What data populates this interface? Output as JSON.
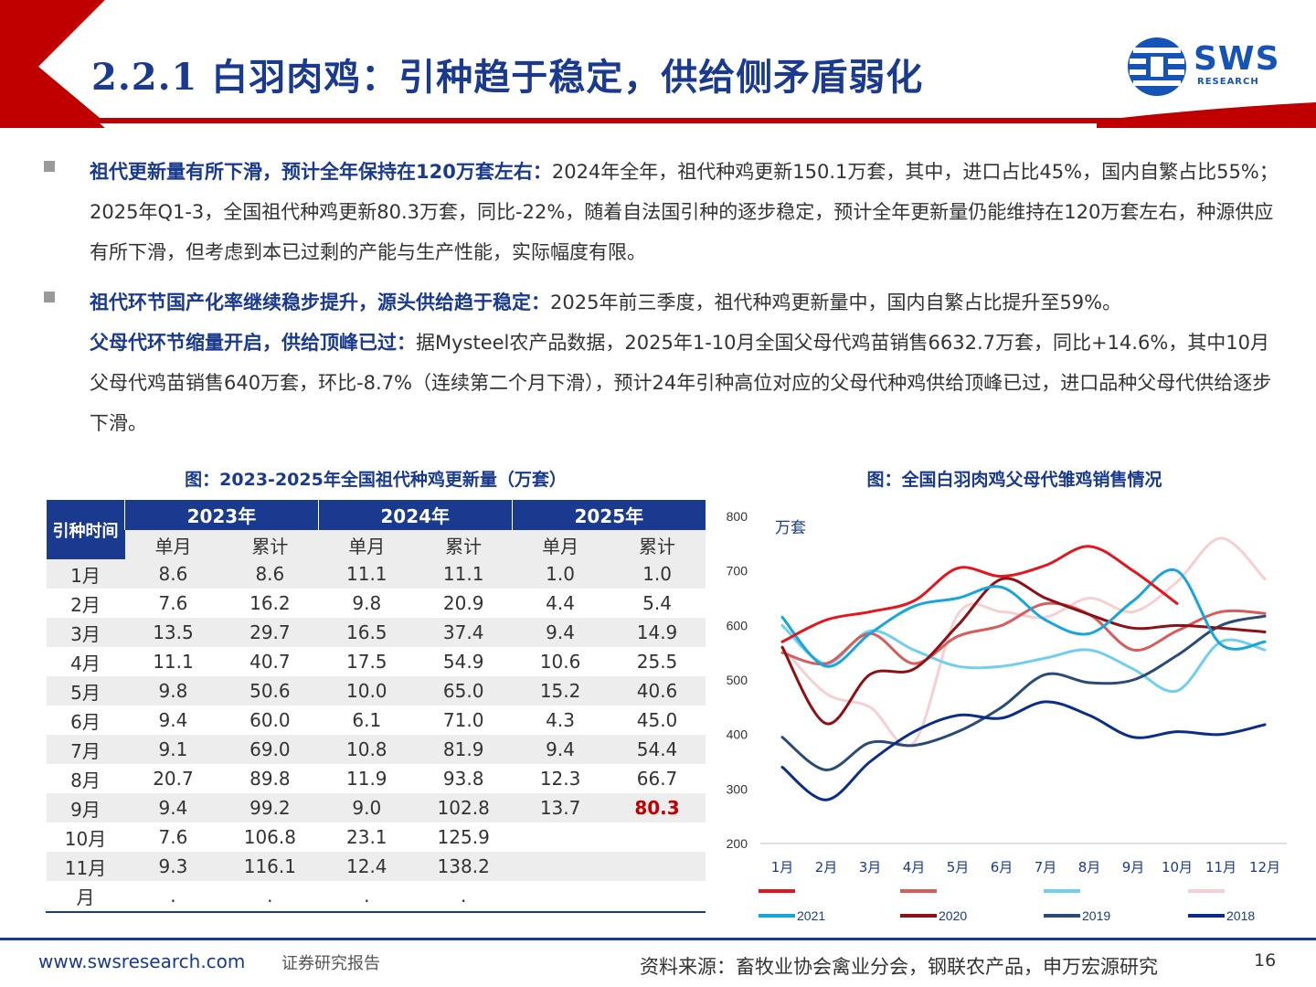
{
  "header": {
    "title": "2.2.1 白羽肉鸡：引种趋于稳定，供给侧矛盾弱化",
    "logo_text": "SWS",
    "logo_sub": "RESEARCH"
  },
  "bullets": [
    {
      "highlight": "祖代更新量有所下滑，预计全年保持在120万套左右：",
      "text": "2024年全年，祖代种鸡更新150.1万套，其中，进口占比45%，国内自繁占比55%；2025年Q1-3，全国祖代种鸡更新80.3万套，同比-22%，随着自法国引种的逐步稳定，预计全年更新量仍能维持在120万套左右，种源供应有所下滑，但考虑到本已过剩的产能与生产性能，实际幅度有限。"
    },
    {
      "highlight": "祖代环节国产化率继续稳步提升，源头供给趋于稳定：",
      "text": "2025年前三季度，祖代种鸡更新量中，国内自繁占比提升至59%。",
      "highlight2": "父母代环节缩量开启，供给顶峰已过：",
      "text2": "据Mysteel农产品数据，2025年1-10月全国父母代鸡苗销售6632.7万套，同比+14.6%，其中10月父母代鸡苗销售640万套，环比-8.7%（连续第二个月下滑），预计24年引种高位对应的父母代种鸡供给顶峰已过，进口品种父母代供给逐步下滑。"
    }
  ],
  "table": {
    "title": "图：2023-2025年全国祖代种鸡更新量（万套）",
    "row_header": "引种时间",
    "years": [
      "2023年",
      "2024年",
      "2025年"
    ],
    "sub_headers": [
      "单月",
      "累计",
      "单月",
      "累计",
      "单月",
      "累计"
    ],
    "rows": [
      {
        "month": "1月",
        "cells": [
          "8.6",
          "8.6",
          "11.1",
          "11.1",
          "1.0",
          "1.0"
        ]
      },
      {
        "month": "2月",
        "cells": [
          "7.6",
          "16.2",
          "9.8",
          "20.9",
          "4.4",
          "5.4"
        ]
      },
      {
        "month": "3月",
        "cells": [
          "13.5",
          "29.7",
          "16.5",
          "37.4",
          "9.4",
          "14.9"
        ]
      },
      {
        "month": "4月",
        "cells": [
          "11.1",
          "40.7",
          "17.5",
          "54.9",
          "10.6",
          "25.5"
        ]
      },
      {
        "month": "5月",
        "cells": [
          "9.8",
          "50.6",
          "10.0",
          "65.0",
          "15.2",
          "40.6"
        ]
      },
      {
        "month": "6月",
        "cells": [
          "9.4",
          "60.0",
          "6.1",
          "71.0",
          "4.3",
          "45.0"
        ]
      },
      {
        "month": "7月",
        "cells": [
          "9.1",
          "69.0",
          "10.8",
          "81.9",
          "9.4",
          "54.4"
        ]
      },
      {
        "month": "8月",
        "cells": [
          "20.7",
          "89.8",
          "11.9",
          "93.8",
          "12.3",
          "66.7"
        ]
      },
      {
        "month": "9月",
        "cells": [
          "9.4",
          "99.2",
          "9.0",
          "102.8",
          "13.7",
          "80.3"
        ]
      },
      {
        "month": "10月",
        "cells": [
          "7.6",
          "106.8",
          "23.1",
          "125.9",
          "",
          ""
        ]
      },
      {
        "month": "11月",
        "cells": [
          "9.3",
          "116.1",
          "12.4",
          "138.2",
          "",
          ""
        ]
      },
      {
        "month": "月",
        "cells": [
          ".",
          ".",
          ".",
          ".",
          "",
          ""
        ]
      }
    ]
  },
  "chart_data": {
    "type": "line",
    "title": "图：全国白羽肉鸡父母代雏鸡销售情况",
    "unit_label": "万套",
    "categories": [
      "1月",
      "2月",
      "3月",
      "4月",
      "5月",
      "6月",
      "7月",
      "8月",
      "9月",
      "10月",
      "11月",
      "12月"
    ],
    "ylim": [
      200,
      800
    ],
    "yticks": [
      200,
      300,
      400,
      500,
      600,
      700,
      800
    ],
    "grid": false,
    "legend_position": "bottom",
    "series": [
      {
        "name": "",
        "color": "#e8141b",
        "values": [
          570,
          610,
          625,
          645,
          705,
          690,
          710,
          745,
          700,
          640,
          null,
          null
        ]
      },
      {
        "name": "",
        "color": "#d95b5b",
        "values": [
          550,
          530,
          585,
          530,
          580,
          600,
          640,
          620,
          555,
          590,
          625,
          622
        ]
      },
      {
        "name": "",
        "color": "#6fcff0",
        "values": [
          600,
          530,
          590,
          555,
          525,
          525,
          540,
          555,
          520,
          480,
          570,
          555
        ]
      },
      {
        "name": "",
        "color": "#f6cfd3",
        "values": [
          560,
          475,
          450,
          385,
          620,
          625,
          615,
          650,
          625,
          680,
          760,
          685
        ]
      },
      {
        "name": "2021",
        "color": "#17a6dc",
        "values": [
          615,
          525,
          585,
          635,
          650,
          670,
          610,
          585,
          645,
          700,
          565,
          570
        ]
      },
      {
        "name": "2020",
        "color": "#8e1015",
        "values": [
          560,
          420,
          510,
          520,
          600,
          685,
          650,
          620,
          595,
          600,
          595,
          588
        ]
      },
      {
        "name": "2019",
        "color": "#2a4a78",
        "values": [
          395,
          335,
          385,
          380,
          405,
          450,
          510,
          495,
          500,
          545,
          600,
          617
        ]
      },
      {
        "name": "2018",
        "color": "#0b2d8a",
        "values": [
          340,
          280,
          350,
          405,
          435,
          430,
          460,
          435,
          395,
          405,
          400,
          418
        ]
      }
    ]
  },
  "footer": {
    "url": "www.swsresearch.com",
    "type": "证券研究报告",
    "source": "资料来源：畜牧业协会禽业分会，钢联农产品，申万宏源研究",
    "page": "16"
  }
}
